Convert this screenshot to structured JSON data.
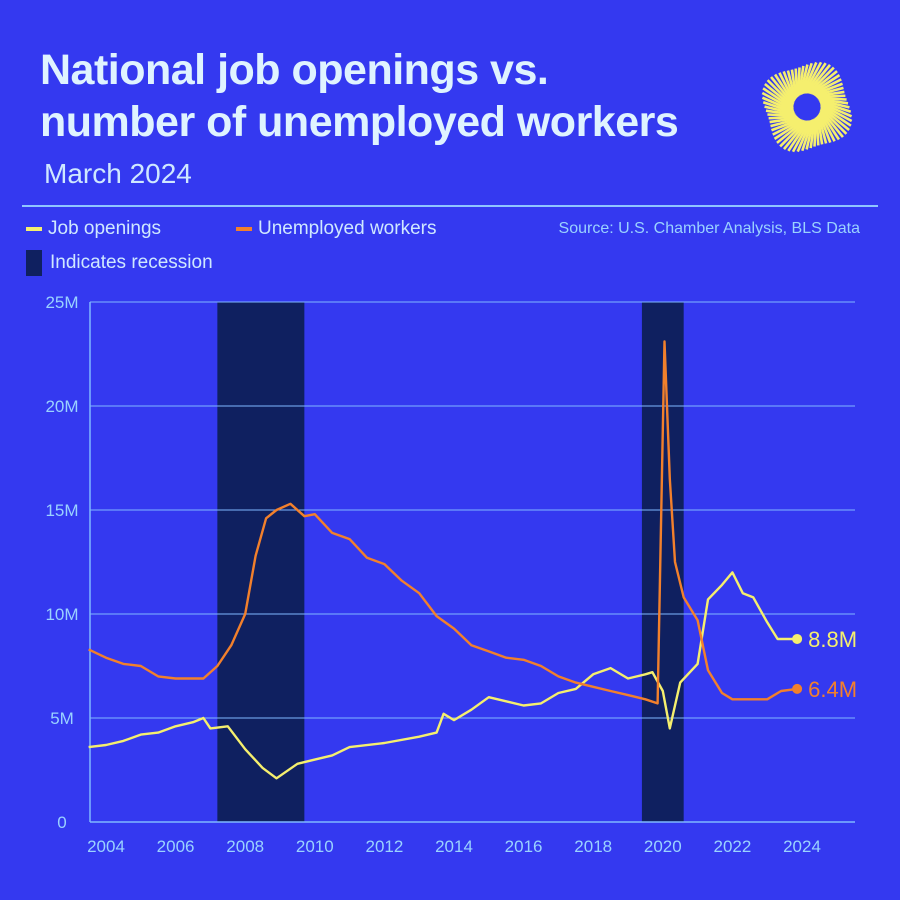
{
  "header": {
    "title_line1": "National job openings vs.",
    "title_line2": "number of unemployed workers",
    "subtitle": "March 2024"
  },
  "legend": {
    "job_openings": "Job openings",
    "unemployed": "Unemployed workers",
    "recession": "Indicates recession",
    "source": "Source: U.S. Chamber Analysis, BLS Data"
  },
  "colors": {
    "background": "#3439f0",
    "job_openings": "#f5ef6e",
    "unemployed": "#f2802c",
    "recession": "#0f2060",
    "grid": "#7fb8ff"
  },
  "chart_data": {
    "type": "line",
    "title": "National job openings vs. number of unemployed workers",
    "xlabel": "",
    "ylabel": "",
    "xlim": [
      2003.5,
      2025.5
    ],
    "ylim": [
      0,
      25
    ],
    "y_ticks": [
      0,
      5,
      10,
      15,
      20,
      25
    ],
    "y_tick_labels": [
      "0",
      "5M",
      "10M",
      "15M",
      "20M",
      "25M"
    ],
    "x_ticks": [
      2004,
      2006,
      2008,
      2010,
      2012,
      2014,
      2016,
      2018,
      2020,
      2022,
      2024
    ],
    "x_tick_labels": [
      "2004",
      "2006",
      "2008",
      "2010",
      "2012",
      "2014",
      "2016",
      "2018",
      "2020",
      "2022",
      "2024"
    ],
    "recessions": [
      [
        2007.2,
        2009.7
      ],
      [
        2019.4,
        2020.6
      ]
    ],
    "series": [
      {
        "name": "Job openings",
        "unit": "M",
        "end_label": "8.8M",
        "x": [
          2003.5,
          2004,
          2004.5,
          2005,
          2005.5,
          2006,
          2006.5,
          2006.8,
          2007,
          2007.5,
          2008,
          2008.5,
          2008.9,
          2009.5,
          2010,
          2010.5,
          2011,
          2012,
          2013,
          2013.5,
          2013.7,
          2014,
          2014.5,
          2015,
          2016,
          2016.5,
          2017,
          2017.5,
          2018,
          2018.5,
          2019,
          2019.5,
          2019.7,
          2020.0,
          2020.2,
          2020.5,
          2021,
          2021.3,
          2021.7,
          2022,
          2022.3,
          2022.6,
          2023,
          2023.3,
          2023.86
        ],
        "y": [
          3.6,
          3.7,
          3.9,
          4.2,
          4.3,
          4.6,
          4.8,
          5.0,
          4.5,
          4.6,
          3.5,
          2.6,
          2.1,
          2.8,
          3.0,
          3.2,
          3.6,
          3.8,
          4.1,
          4.3,
          5.2,
          4.9,
          5.4,
          6.0,
          5.6,
          5.7,
          6.2,
          6.4,
          7.1,
          7.4,
          6.9,
          7.1,
          7.2,
          6.3,
          4.5,
          6.7,
          7.6,
          10.7,
          11.4,
          12.0,
          11.0,
          10.8,
          9.6,
          8.8,
          8.8
        ]
      },
      {
        "name": "Unemployed workers",
        "unit": "M",
        "end_label": "6.4M",
        "x": [
          2003.5,
          2004,
          2004.5,
          2005,
          2005.5,
          2006,
          2006.5,
          2006.8,
          2007.2,
          2007.6,
          2008,
          2008.3,
          2008.6,
          2008.9,
          2009.3,
          2009.7,
          2010,
          2010.5,
          2011,
          2011.5,
          2012,
          2012.5,
          2013,
          2013.5,
          2014,
          2014.5,
          2015,
          2015.5,
          2016,
          2016.5,
          2017,
          2017.5,
          2018,
          2018.5,
          2019,
          2019.5,
          2019.85,
          2020.05,
          2020.2,
          2020.35,
          2020.6,
          2021,
          2021.3,
          2021.7,
          2022,
          2022.5,
          2023,
          2023.4,
          2023.86
        ],
        "y": [
          8.3,
          7.9,
          7.6,
          7.5,
          7.0,
          6.9,
          6.9,
          6.9,
          7.5,
          8.5,
          10.0,
          12.8,
          14.6,
          15.0,
          15.3,
          14.7,
          14.8,
          13.9,
          13.6,
          12.7,
          12.4,
          11.6,
          11.0,
          9.9,
          9.3,
          8.5,
          8.2,
          7.9,
          7.8,
          7.5,
          7.0,
          6.7,
          6.5,
          6.3,
          6.1,
          5.9,
          5.7,
          23.1,
          16.5,
          12.5,
          10.8,
          9.7,
          7.3,
          6.2,
          5.9,
          5.9,
          5.9,
          6.3,
          6.4
        ]
      }
    ]
  }
}
